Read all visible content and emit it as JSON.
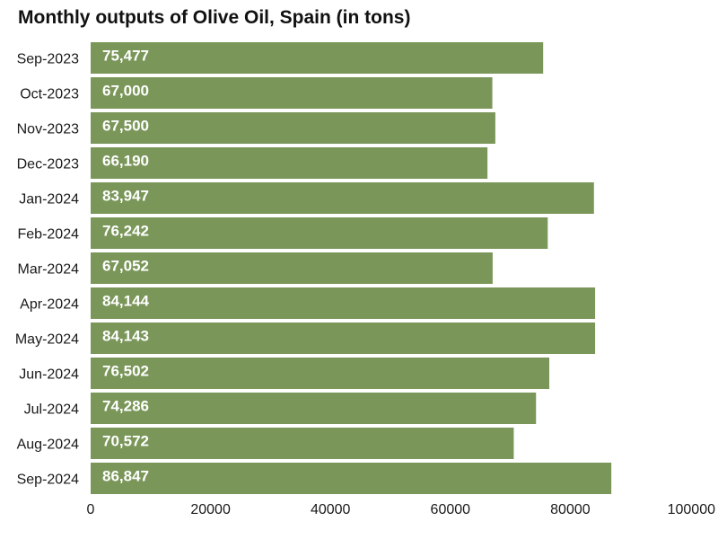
{
  "chart_data": {
    "type": "bar",
    "orientation": "horizontal",
    "title": "Monthly outputs of Olive Oil, Spain (in tons)",
    "xlabel": "",
    "ylabel": "",
    "categories": [
      "Sep-2023",
      "Oct-2023",
      "Nov-2023",
      "Dec-2023",
      "Jan-2024",
      "Feb-2024",
      "Mar-2024",
      "Apr-2024",
      "May-2024",
      "Jun-2024",
      "Jul-2024",
      "Aug-2024",
      "Sep-2024"
    ],
    "values": [
      75477,
      67000,
      67500,
      66190,
      83947,
      76242,
      67052,
      84144,
      84143,
      76502,
      74286,
      70572,
      86847
    ],
    "value_labels": [
      "75,477",
      "67,000",
      "67,500",
      "66,190",
      "83,947",
      "76,242",
      "67,052",
      "84,144",
      "84,143",
      "76,502",
      "74,286",
      "70,572",
      "86,847"
    ],
    "xlim": [
      0,
      100000
    ],
    "xticks": [
      0,
      20000,
      40000,
      60000,
      80000,
      100000
    ],
    "xtick_labels": [
      "0",
      "20000",
      "40000",
      "60000",
      "80000",
      "100000"
    ],
    "grid": false,
    "legend": "none",
    "bar_color": "#7a9659",
    "label_color": "#ffffff"
  }
}
